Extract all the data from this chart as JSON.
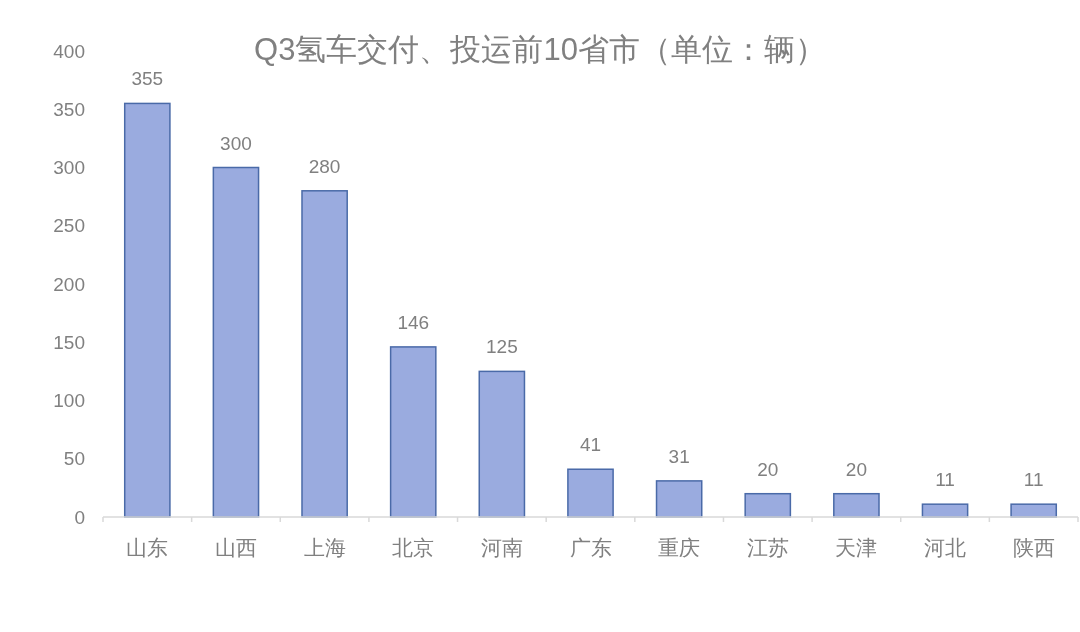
{
  "chart_data": {
    "type": "bar",
    "title": "Q3氢车交付、投运前10省市（单位：辆）",
    "categories": [
      "山东",
      "山西",
      "上海",
      "北京",
      "河南",
      "广东",
      "重庆",
      "江苏",
      "天津",
      "河北",
      "陕西"
    ],
    "values": [
      355,
      300,
      280,
      146,
      125,
      41,
      31,
      20,
      20,
      11,
      11
    ],
    "color": "#9aabdf",
    "ylim": [
      0,
      400
    ],
    "yticks": [
      0,
      50,
      100,
      150,
      200,
      250,
      300,
      350,
      400
    ],
    "data_labels": true
  }
}
